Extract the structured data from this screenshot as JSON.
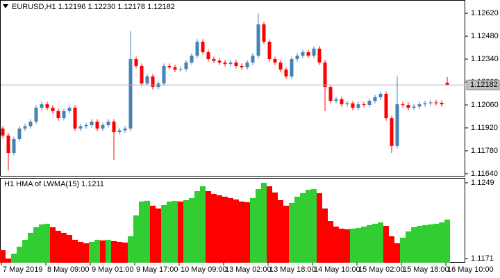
{
  "chart_data": [
    {
      "type": "candlestick",
      "title": "EURUSD,H1  1.12196 1.12230 1.12178 1.12182",
      "up_color": "#4682B4",
      "down_color": "#FF0000",
      "price_line": true,
      "ylim": [
        1.11627,
        1.12701
      ],
      "yticks": [
        {
          "value": 1.1262,
          "label": "1.12620"
        },
        {
          "value": 1.1248,
          "label": "1.12480"
        },
        {
          "value": 1.1234,
          "label": "1.12340"
        },
        {
          "value": 1.122,
          "label": "1.12200"
        },
        {
          "value": 1.1206,
          "label": "1.12060"
        },
        {
          "value": 1.1192,
          "label": "1.11920"
        },
        {
          "value": 1.1178,
          "label": "1.11780"
        },
        {
          "value": 1.1164,
          "label": "1.11640"
        }
      ],
      "open": [
        1.11916,
        1.11873,
        1.11767,
        1.11852,
        1.11916,
        1.1193,
        1.11958,
        1.12043,
        1.12064,
        1.12043,
        1.12022,
        1.11979,
        1.12022,
        1.12043,
        1.11916,
        1.1193,
        1.11937,
        1.11958,
        1.11916,
        1.11937,
        1.11958,
        1.11894,
        1.11905,
        1.11916,
        1.1234,
        1.12298,
        1.12191,
        1.12234,
        1.1217,
        1.12191,
        1.12298,
        1.1229,
        1.12276,
        1.1228,
        1.12319,
        1.12361,
        1.12446,
        1.12382,
        1.1234,
        1.1233,
        1.12319,
        1.1231,
        1.12319,
        1.12298,
        1.1229,
        1.12319,
        1.12361,
        1.12552,
        1.12446,
        1.1234,
        1.12319,
        1.12276,
        1.12234,
        1.1234,
        1.12361,
        1.12382,
        1.12361,
        1.12404,
        1.12319,
        1.1217,
        1.12085,
        1.12095,
        1.12064,
        1.1207,
        1.12043,
        1.12064,
        1.1206,
        1.12085,
        1.12107,
        1.12128,
        1.11979,
        1.1181,
        1.12064,
        1.1206,
        1.12043,
        1.1205,
        1.12064,
        1.1207,
        1.12075,
        1.12073,
        1.12196
      ],
      "high": [
        1.11931,
        1.11888,
        1.11867,
        1.11931,
        1.11945,
        1.11973,
        1.12058,
        1.12079,
        1.12079,
        1.12058,
        1.12037,
        1.12037,
        1.12058,
        1.12058,
        1.11945,
        1.11952,
        1.11973,
        1.11973,
        1.11952,
        1.11973,
        1.11973,
        1.1192,
        1.11931,
        1.1251,
        1.12355,
        1.12313,
        1.12249,
        1.12249,
        1.12206,
        1.12313,
        1.12313,
        1.12305,
        1.12295,
        1.12334,
        1.12376,
        1.12461,
        1.12461,
        1.12397,
        1.12355,
        1.12345,
        1.12334,
        1.12334,
        1.12334,
        1.12313,
        1.12334,
        1.12376,
        1.1262,
        1.12567,
        1.12461,
        1.12355,
        1.12334,
        1.12291,
        1.12355,
        1.12376,
        1.12397,
        1.12397,
        1.12419,
        1.12419,
        1.12334,
        1.12185,
        1.1211,
        1.1211,
        1.12085,
        1.12085,
        1.12079,
        1.12079,
        1.121,
        1.12122,
        1.12143,
        1.12143,
        1.11994,
        1.12234,
        1.12079,
        1.12075,
        1.12065,
        1.12079,
        1.12085,
        1.1209,
        1.1209,
        1.12088,
        1.1223
      ],
      "low": [
        1.11858,
        1.1166,
        1.11752,
        1.11837,
        1.11901,
        1.11915,
        1.11943,
        1.12028,
        1.12028,
        1.12007,
        1.11964,
        1.11964,
        1.12007,
        1.11901,
        1.11901,
        1.11915,
        1.11922,
        1.11901,
        1.11901,
        1.11922,
        1.11725,
        1.11879,
        1.1189,
        1.11901,
        1.12283,
        1.12176,
        1.12176,
        1.12155,
        1.12155,
        1.12176,
        1.12275,
        1.12261,
        1.12261,
        1.12265,
        1.12304,
        1.12346,
        1.12367,
        1.12325,
        1.12315,
        1.12304,
        1.12295,
        1.12295,
        1.12283,
        1.12275,
        1.12275,
        1.12304,
        1.12346,
        1.12431,
        1.12325,
        1.12304,
        1.12261,
        1.12219,
        1.12219,
        1.12325,
        1.12346,
        1.12346,
        1.12346,
        1.12304,
        1.12022,
        1.1207,
        1.1207,
        1.12049,
        1.12049,
        1.12028,
        1.12028,
        1.12045,
        1.12045,
        1.1207,
        1.12092,
        1.11964,
        1.11767,
        1.11795,
        1.12045,
        1.12028,
        1.12028,
        1.12035,
        1.12049,
        1.12055,
        1.12058,
        1.12049,
        1.12178
      ],
      "close": [
        1.11873,
        1.11767,
        1.11852,
        1.11916,
        1.1193,
        1.11958,
        1.12043,
        1.12064,
        1.12043,
        1.12022,
        1.11979,
        1.12022,
        1.12043,
        1.11916,
        1.1193,
        1.11937,
        1.11958,
        1.11916,
        1.11937,
        1.11958,
        1.11894,
        1.11905,
        1.11916,
        1.1234,
        1.12298,
        1.12191,
        1.12234,
        1.1217,
        1.12191,
        1.12298,
        1.1229,
        1.12276,
        1.1228,
        1.12319,
        1.12361,
        1.12446,
        1.12382,
        1.1234,
        1.1233,
        1.12319,
        1.1231,
        1.12319,
        1.12298,
        1.1229,
        1.12319,
        1.12361,
        1.12552,
        1.12446,
        1.1234,
        1.12319,
        1.12276,
        1.12234,
        1.1234,
        1.12361,
        1.12382,
        1.12361,
        1.12404,
        1.12319,
        1.1217,
        1.12085,
        1.12095,
        1.12064,
        1.1207,
        1.12043,
        1.12064,
        1.1206,
        1.12085,
        1.12107,
        1.12128,
        1.11979,
        1.1181,
        1.12064,
        1.1206,
        1.12043,
        1.1205,
        1.12064,
        1.1207,
        1.12075,
        1.12073,
        1.12064,
        1.12182
      ]
    },
    {
      "type": "bar",
      "title": "H1 HMA of LWMA(15) 1.1211",
      "up_color": "#32CD32",
      "down_color": "#FF0000",
      "ylim": [
        1.11667,
        1.1254
      ],
      "yticks": [
        1.1249,
        1.1171
      ],
      "values": [
        1.11796,
        1.1171,
        1.1176,
        1.11832,
        1.11903,
        1.11975,
        1.12032,
        1.12061,
        1.12068,
        1.12032,
        1.11996,
        1.11975,
        1.11953,
        1.11903,
        1.11882,
        1.11867,
        1.11882,
        1.11903,
        1.11896,
        1.11903,
        1.11889,
        1.11882,
        1.11875,
        1.11939,
        1.12154,
        1.12297,
        1.12305,
        1.12254,
        1.12225,
        1.12261,
        1.12297,
        1.12304,
        1.12297,
        1.12311,
        1.12333,
        1.12404,
        1.12454,
        1.12404,
        1.12376,
        1.12361,
        1.12347,
        1.12333,
        1.12318,
        1.12297,
        1.1229,
        1.12333,
        1.12426,
        1.1249,
        1.12454,
        1.1239,
        1.12311,
        1.12254,
        1.12283,
        1.12347,
        1.12383,
        1.12418,
        1.12426,
        1.12383,
        1.12225,
        1.12096,
        1.12039,
        1.12018,
        1.12011,
        1.12018,
        1.12025,
        1.12039,
        1.12054,
        1.12068,
        1.12082,
        1.12046,
        1.11939,
        1.11867,
        1.11925,
        1.11989,
        1.12032,
        1.12046,
        1.12054,
        1.12061,
        1.12068,
        1.12082,
        1.12111
      ],
      "xticks": [
        {
          "value": 0,
          "label": "7 May 2019"
        },
        {
          "value": 8,
          "label": "8 May 09:00"
        },
        {
          "value": 16,
          "label": "9 May 01:00"
        },
        {
          "value": 24,
          "label": "9 May 17:00"
        },
        {
          "value": 32,
          "label": "10 May 09:00"
        },
        {
          "value": 40,
          "label": "13 May 02:00"
        },
        {
          "value": 48,
          "label": "13 May 18:00"
        },
        {
          "value": 56,
          "label": "14 May 10:00"
        },
        {
          "value": 64,
          "label": "15 May 02:00"
        },
        {
          "value": 72,
          "label": "15 May 18:00"
        },
        {
          "value": 80,
          "label": "16 May 10:00"
        }
      ]
    }
  ]
}
